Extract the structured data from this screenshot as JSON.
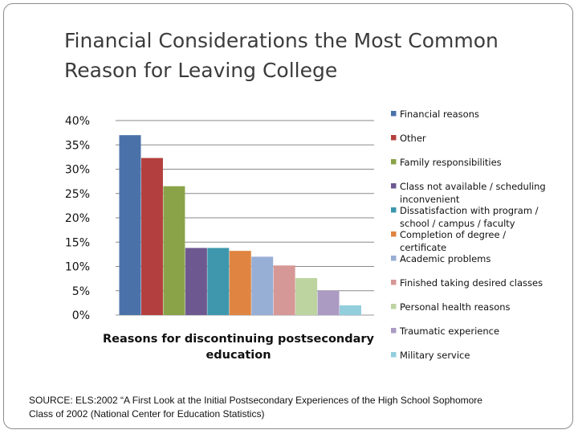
{
  "slide": {
    "title_lines": [
      "Financial Considerations the Most Common",
      "Reason for Leaving College"
    ],
    "source_lines": [
      "SOURCE: ELS:2002 “A First Look at the Initial Postsecondary Experiences of the High School Sophomore",
      "Class of 2002 (National Center for Education Statistics)"
    ]
  },
  "chart_data": {
    "type": "bar",
    "title": "",
    "xlabel": "Reasons for discontinuing postsecondary education",
    "ylabel": "",
    "ylim": [
      0,
      40
    ],
    "y_ticks": [
      "0%",
      "5%",
      "10%",
      "15%",
      "20%",
      "25%",
      "30%",
      "35%",
      "40%"
    ],
    "y_tick_values": [
      0,
      5,
      10,
      15,
      20,
      25,
      30,
      35,
      40
    ],
    "grid": true,
    "legend_position": "right",
    "series": [
      {
        "name": "Financial reasons",
        "value": 37,
        "color": "#4a72a9"
      },
      {
        "name": "Other",
        "value": 32.3,
        "color": "#b3403e"
      },
      {
        "name": "Family responsibilities",
        "value": 26.5,
        "color": "#8aa349"
      },
      {
        "name": "Class not available / scheduling inconvenient",
        "value": 13.8,
        "color": "#6e5890"
      },
      {
        "name": "Dissatisfaction with program / school / campus / faculty",
        "value": 13.8,
        "color": "#3e97ad"
      },
      {
        "name": "Completion of degree / certificate",
        "value": 13.2,
        "color": "#df8541"
      },
      {
        "name": "Academic problems",
        "value": 12,
        "color": "#97aed5"
      },
      {
        "name": "Finished taking desired classes",
        "value": 10.2,
        "color": "#d69896"
      },
      {
        "name": "Personal health reasons",
        "value": 7.6,
        "color": "#bdd4a0"
      },
      {
        "name": "Traumatic experience",
        "value": 5,
        "color": "#ab9bc3"
      },
      {
        "name": "Military service",
        "value": 2,
        "color": "#93cedd"
      }
    ],
    "legend_lines": [
      [
        "Financial reasons"
      ],
      [
        "Other"
      ],
      [
        "Family responsibilities"
      ],
      [
        "Class not available / scheduling",
        "inconvenient"
      ],
      [
        "Dissatisfaction with program /",
        "school / campus / faculty"
      ],
      [
        "Completion of degree /",
        "certificate"
      ],
      [
        "Academic problems"
      ],
      [
        "Finished taking desired classes"
      ],
      [
        "Personal health reasons"
      ],
      [
        "Traumatic experience"
      ],
      [
        "Military service"
      ]
    ],
    "xlabel_lines": [
      "Reasons for discontinuing postsecondary",
      "education"
    ]
  }
}
